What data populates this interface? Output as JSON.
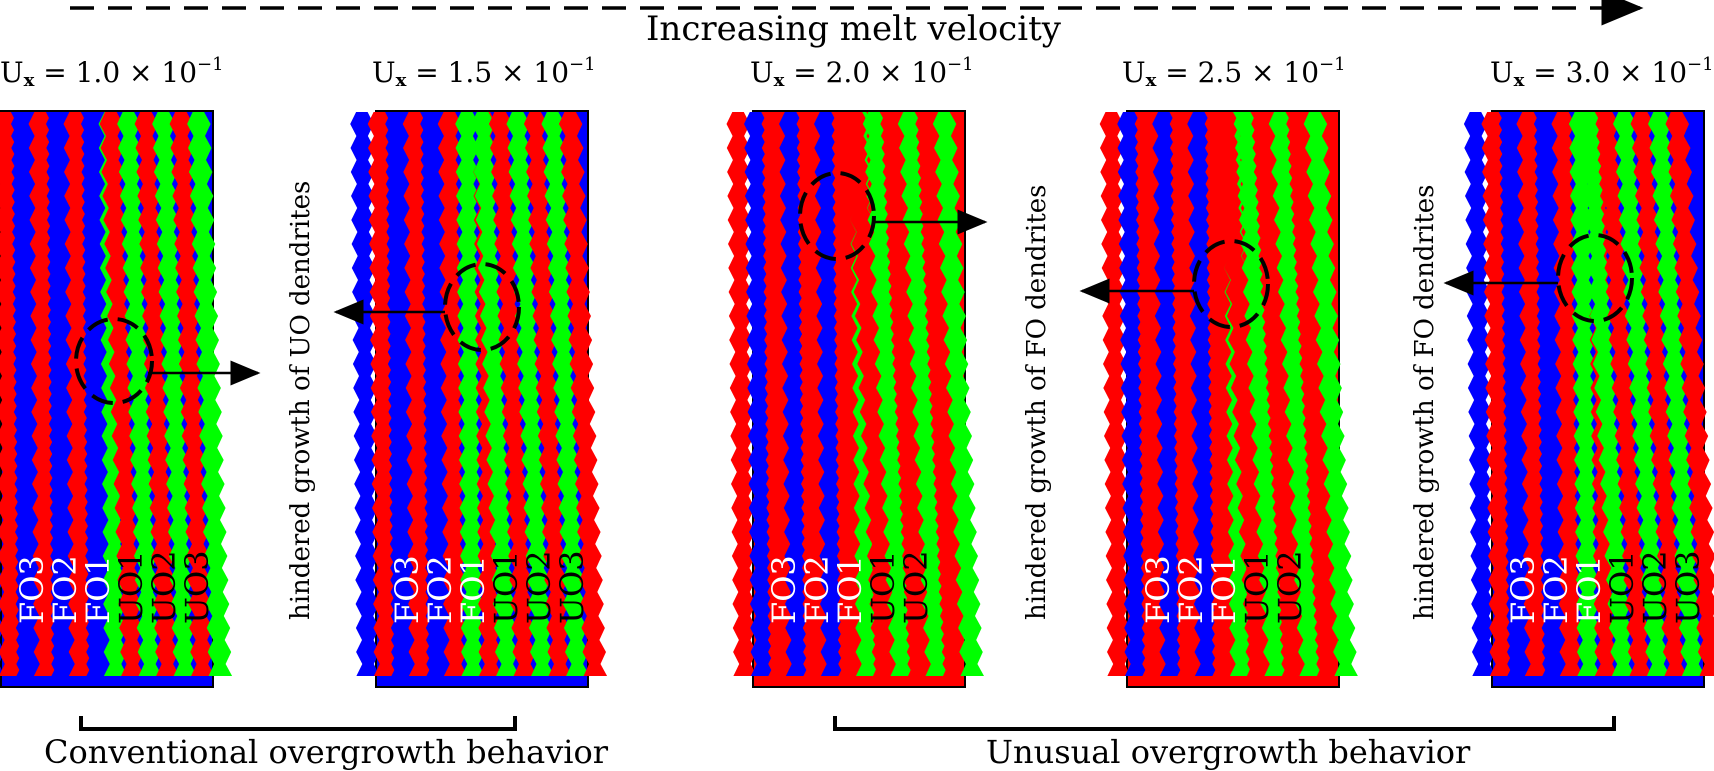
{
  "header": {
    "title": "Increasing melt velocity"
  },
  "panels": [
    {
      "ux_label": "U",
      "ux_sub": "x",
      "ux_value": "= 1.0 × 10",
      "ux_exp": "−1",
      "labels": [
        "FO3",
        "FO2",
        "FO1",
        "UO1",
        "UO2",
        "UO3"
      ],
      "stripes": [
        "b",
        "r",
        "b",
        "r",
        "b",
        "r",
        "b",
        "g",
        "r",
        "g",
        "r",
        "g",
        "r",
        "g"
      ]
    },
    {
      "ux_label": "U",
      "ux_sub": "x",
      "ux_value": "= 1.5 × 10",
      "ux_exp": "−1",
      "labels": [
        "FO3",
        "FO2",
        "FO1",
        "UO1",
        "UO2",
        "UO3"
      ],
      "stripes": [
        "b",
        "r",
        "b",
        "r",
        "b",
        "r",
        "g",
        "r",
        "g",
        "r",
        "g",
        "r",
        "g",
        "r"
      ]
    },
    {
      "ux_label": "U",
      "ux_sub": "x",
      "ux_value": "= 2.0 × 10",
      "ux_exp": "−1",
      "labels": [
        "FO3",
        "FO2",
        "FO1",
        "UO1",
        "UO2"
      ],
      "stripes": [
        "r",
        "b",
        "r",
        "b",
        "r",
        "b",
        "r",
        "g",
        "r",
        "g",
        "r",
        "g",
        "r",
        "g"
      ]
    },
    {
      "ux_label": "U",
      "ux_sub": "x",
      "ux_value": "= 2.5 × 10",
      "ux_exp": "−1",
      "labels": [
        "FO3",
        "FO2",
        "FO1",
        "UO1",
        "UO2"
      ],
      "stripes": [
        "r",
        "b",
        "r",
        "b",
        "r",
        "b",
        "r",
        "g",
        "r",
        "g",
        "r",
        "g",
        "r",
        "g"
      ]
    },
    {
      "ux_label": "U",
      "ux_sub": "x",
      "ux_value": "= 3.0 × 10",
      "ux_exp": "−1",
      "labels": [
        "FO3",
        "FO2",
        "FO1",
        "UO1",
        "UO2",
        "UO3"
      ],
      "stripes": [
        "b",
        "r",
        "b",
        "r",
        "b",
        "r",
        "g",
        "r",
        "g",
        "r",
        "g",
        "r",
        "g",
        "r"
      ]
    }
  ],
  "annotations": {
    "uo_hindered": "hindered growth of UO dendrites",
    "fo_hindered_1": "hindered growth of FO dendrites",
    "fo_hindered_2": "hindered growth of FO dendrites"
  },
  "behaviors": {
    "conventional": "Conventional overgrowth behavior",
    "unusual": "Unusual overgrowth behavior"
  },
  "colors": {
    "red": "#ff0000",
    "green": "#00ff00",
    "blue": "#0000ff",
    "black": "#000000",
    "white": "#ffffff"
  }
}
